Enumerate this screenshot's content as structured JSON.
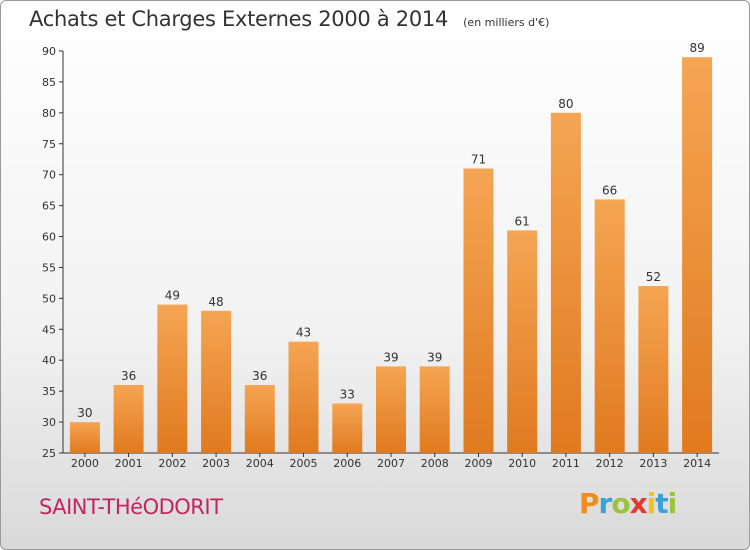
{
  "title": "Achats et Charges Externes 2000 à 2014",
  "subtitle": "(en milliers d'€)",
  "location": "SAINT-THéODORIT",
  "logo": {
    "letters": [
      "P",
      "r",
      "o",
      "x",
      "i",
      "t",
      "i"
    ],
    "colors": [
      "#f28c1a",
      "#3aa0d8",
      "#9bc33c",
      "#e53a2f",
      "#f2c21a",
      "#3aa0d8",
      "#9bc33c"
    ]
  },
  "colors": {
    "bar_light": "#f5a553",
    "bar_dark": "#e07a1f",
    "axis": "#333333",
    "grid": "#dddddd"
  },
  "chart_data": {
    "type": "bar",
    "categories": [
      "2000",
      "2001",
      "2002",
      "2003",
      "2004",
      "2005",
      "2006",
      "2007",
      "2008",
      "2009",
      "2010",
      "2011",
      "2012",
      "2013",
      "2014"
    ],
    "values": [
      30,
      36,
      49,
      48,
      36,
      43,
      33,
      39,
      39,
      71,
      61,
      80,
      66,
      52,
      89
    ],
    "data_labels": [
      "30",
      "36",
      "49",
      "48",
      "36",
      "43",
      "33",
      "39",
      "39",
      "71",
      "61",
      "80",
      "66",
      "52",
      "89"
    ],
    "ylim": [
      25,
      90
    ],
    "yticks": [
      25,
      30,
      35,
      40,
      45,
      50,
      55,
      60,
      65,
      70,
      75,
      80,
      85,
      90
    ],
    "xlabel": "",
    "ylabel": "",
    "grid": false
  }
}
